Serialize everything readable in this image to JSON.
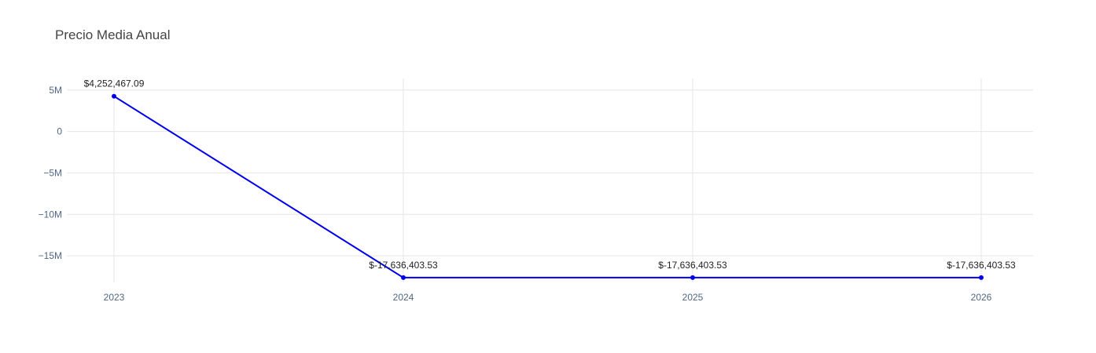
{
  "chart_data": {
    "type": "line",
    "title": "Precio Media Anual",
    "x": [
      "2023",
      "2024",
      "2025",
      "2026"
    ],
    "series": [
      {
        "values": [
          4252467.09,
          -17636403.53,
          -17636403.53,
          -17636403.53
        ],
        "labels": [
          "$4,252,467.09",
          "$-17,636,403.53",
          "$-17,636,403.53",
          "$-17,636,403.53"
        ],
        "color": "#0000ee"
      }
    ],
    "ylim": [
      -18400000,
      6400000
    ],
    "yticks": [
      {
        "value": 5000000,
        "label": "5M"
      },
      {
        "value": 0,
        "label": "0"
      },
      {
        "value": -5000000,
        "label": "−5M"
      },
      {
        "value": -10000000,
        "label": "−10M"
      },
      {
        "value": -15000000,
        "label": "−15M"
      }
    ],
    "grid": true,
    "legend": false
  }
}
